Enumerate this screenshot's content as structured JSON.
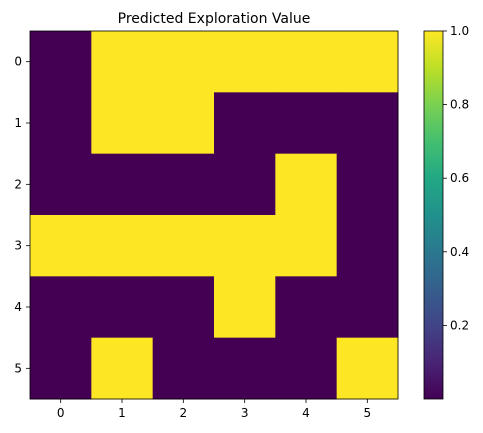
{
  "chart_data": {
    "type": "heatmap",
    "title": "Predicted Exploration Value",
    "x": [
      0,
      1,
      2,
      3,
      4,
      5
    ],
    "y": [
      0,
      1,
      2,
      3,
      4,
      5
    ],
    "x_tick_labels": [
      "0",
      "1",
      "2",
      "3",
      "4",
      "5"
    ],
    "y_tick_labels": [
      "0",
      "1",
      "2",
      "3",
      "4",
      "5"
    ],
    "values": [
      [
        0,
        1,
        1,
        1,
        1,
        1
      ],
      [
        0,
        1,
        1,
        0,
        0,
        0
      ],
      [
        0,
        0,
        0,
        0,
        1,
        0
      ],
      [
        1,
        1,
        1,
        1,
        1,
        0
      ],
      [
        0,
        0,
        0,
        1,
        0,
        0
      ],
      [
        0,
        1,
        0,
        0,
        0,
        1
      ]
    ],
    "colormap": "viridis",
    "low_color": "#440154",
    "high_color": "#fde725",
    "colorbar": {
      "range": [
        0.0,
        1.0
      ],
      "ticks": [
        0.2,
        0.4,
        0.6,
        0.8,
        1.0
      ],
      "tick_labels": [
        "0.2",
        "0.4",
        "0.6",
        "0.8",
        "1.0"
      ]
    },
    "xlabel": "",
    "ylabel": ""
  }
}
